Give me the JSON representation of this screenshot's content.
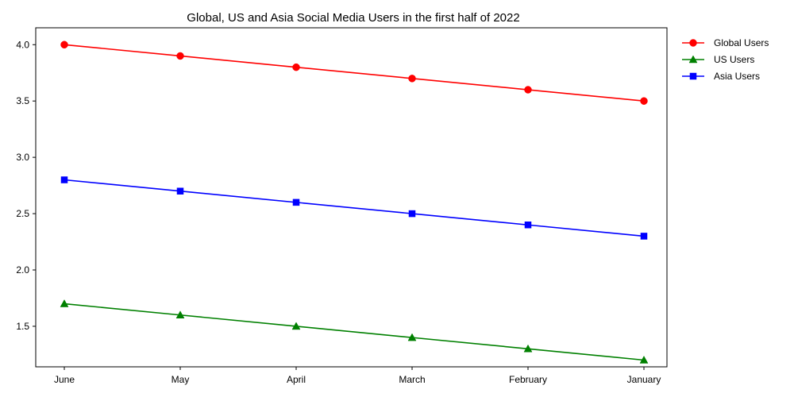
{
  "chart_data": {
    "type": "line",
    "title": "Global, US and Asia Social Media Users in the first half of 2022",
    "xlabel": "",
    "ylabel": "",
    "categories": [
      "June",
      "May",
      "April",
      "March",
      "February",
      "January"
    ],
    "yticks": [
      "1.5",
      "2.0",
      "2.5",
      "3.0",
      "3.5",
      "4.0"
    ],
    "ylim": [
      1.14,
      4.15
    ],
    "grid": false,
    "legend_position": "upper-right-outside",
    "series": [
      {
        "name": "Global Users",
        "values": [
          4.0,
          3.9,
          3.8,
          3.7,
          3.6,
          3.5
        ],
        "color": "#ff0000",
        "marker": "circle"
      },
      {
        "name": "US Users",
        "values": [
          1.7,
          1.6,
          1.5,
          1.4,
          1.3,
          1.2
        ],
        "color": "#008000",
        "marker": "triangle"
      },
      {
        "name": "Asia Users",
        "values": [
          2.8,
          2.7,
          2.6,
          2.5,
          2.4,
          2.3
        ],
        "color": "#0000ff",
        "marker": "square"
      }
    ]
  }
}
